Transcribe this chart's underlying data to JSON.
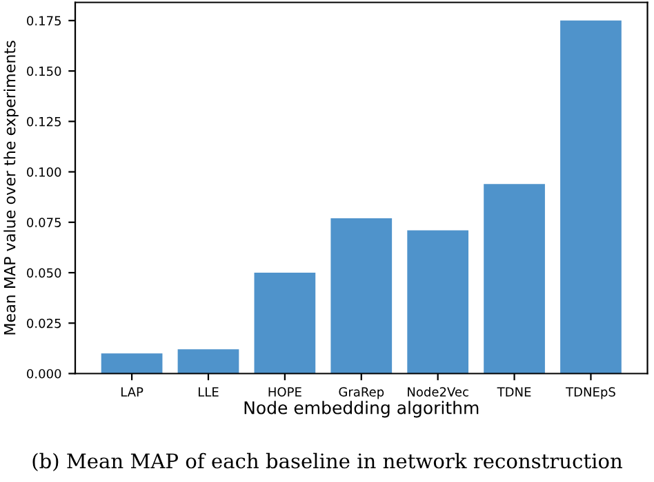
{
  "chart_data": {
    "type": "bar",
    "categories": [
      "LAP",
      "LLE",
      "HOPE",
      "GraRep",
      "Node2Vec",
      "TDNE",
      "TDNEpS"
    ],
    "values": [
      0.01,
      0.012,
      0.05,
      0.077,
      0.071,
      0.094,
      0.175
    ],
    "color": "#4f93cb",
    "xlabel": "Node embedding algorithm",
    "ylabel": "Mean MAP value over the experiments",
    "ylim": [
      0,
      0.184
    ],
    "yticks": [
      {
        "value": 0,
        "label": "0.000"
      },
      {
        "value": 0.025,
        "label": "0.025"
      },
      {
        "value": 0.05,
        "label": "0.050"
      },
      {
        "value": 0.075,
        "label": "0.075"
      },
      {
        "value": 0.1,
        "label": "0.100"
      },
      {
        "value": 0.125,
        "label": "0.125"
      },
      {
        "value": 0.15,
        "label": "0.150"
      },
      {
        "value": 0.175,
        "label": "0.175"
      }
    ],
    "grid": false,
    "annotations": [
      "(b) Mean MAP of each baseline in network reconstruction"
    ]
  }
}
